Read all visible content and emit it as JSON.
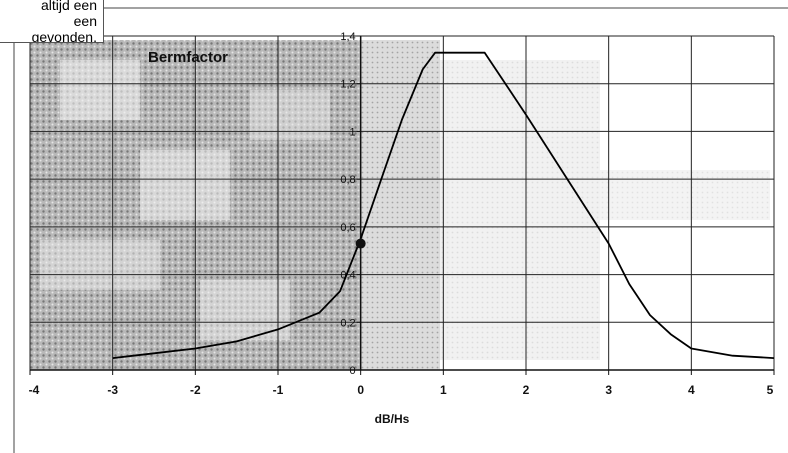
{
  "callout": {
    "lines": [
      "altijd een",
      "een",
      "gevonden."
    ]
  },
  "chart_data": {
    "type": "line",
    "title": "Bermfactor",
    "xlabel": "dB/Hs",
    "ylabel": "",
    "xlim": [
      -4,
      5
    ],
    "ylim": [
      0,
      1.4
    ],
    "xticks": [
      "-4",
      "-3",
      "-2",
      "-1",
      "0",
      "1",
      "2",
      "3",
      "4",
      "5"
    ],
    "yticks": [
      "0",
      "0,2",
      "0,4",
      "0,6",
      "0,8",
      "1",
      "1,2",
      "1,4"
    ],
    "grid": true,
    "legend": "none",
    "series": [
      {
        "x": [
          -3,
          -2.5,
          -2,
          -1.5,
          -1,
          -0.5,
          -0.25,
          0,
          0.25,
          0.5,
          0.75,
          0.9,
          1.5,
          2,
          2.5,
          3,
          3.25,
          3.5,
          3.75,
          4,
          4.5,
          5
        ],
        "y": [
          0.05,
          0.07,
          0.09,
          0.12,
          0.17,
          0.24,
          0.33,
          0.55,
          0.8,
          1.05,
          1.26,
          1.33,
          1.33,
          1.07,
          0.8,
          0.53,
          0.36,
          0.23,
          0.15,
          0.09,
          0.06,
          0.05
        ]
      }
    ],
    "marker": {
      "x": 0,
      "y": 0.53
    },
    "colors": {
      "line": "#000000",
      "grid": "#222222",
      "texture_dark": "#8a8a8a",
      "texture_light": "#f4f4f4"
    }
  }
}
